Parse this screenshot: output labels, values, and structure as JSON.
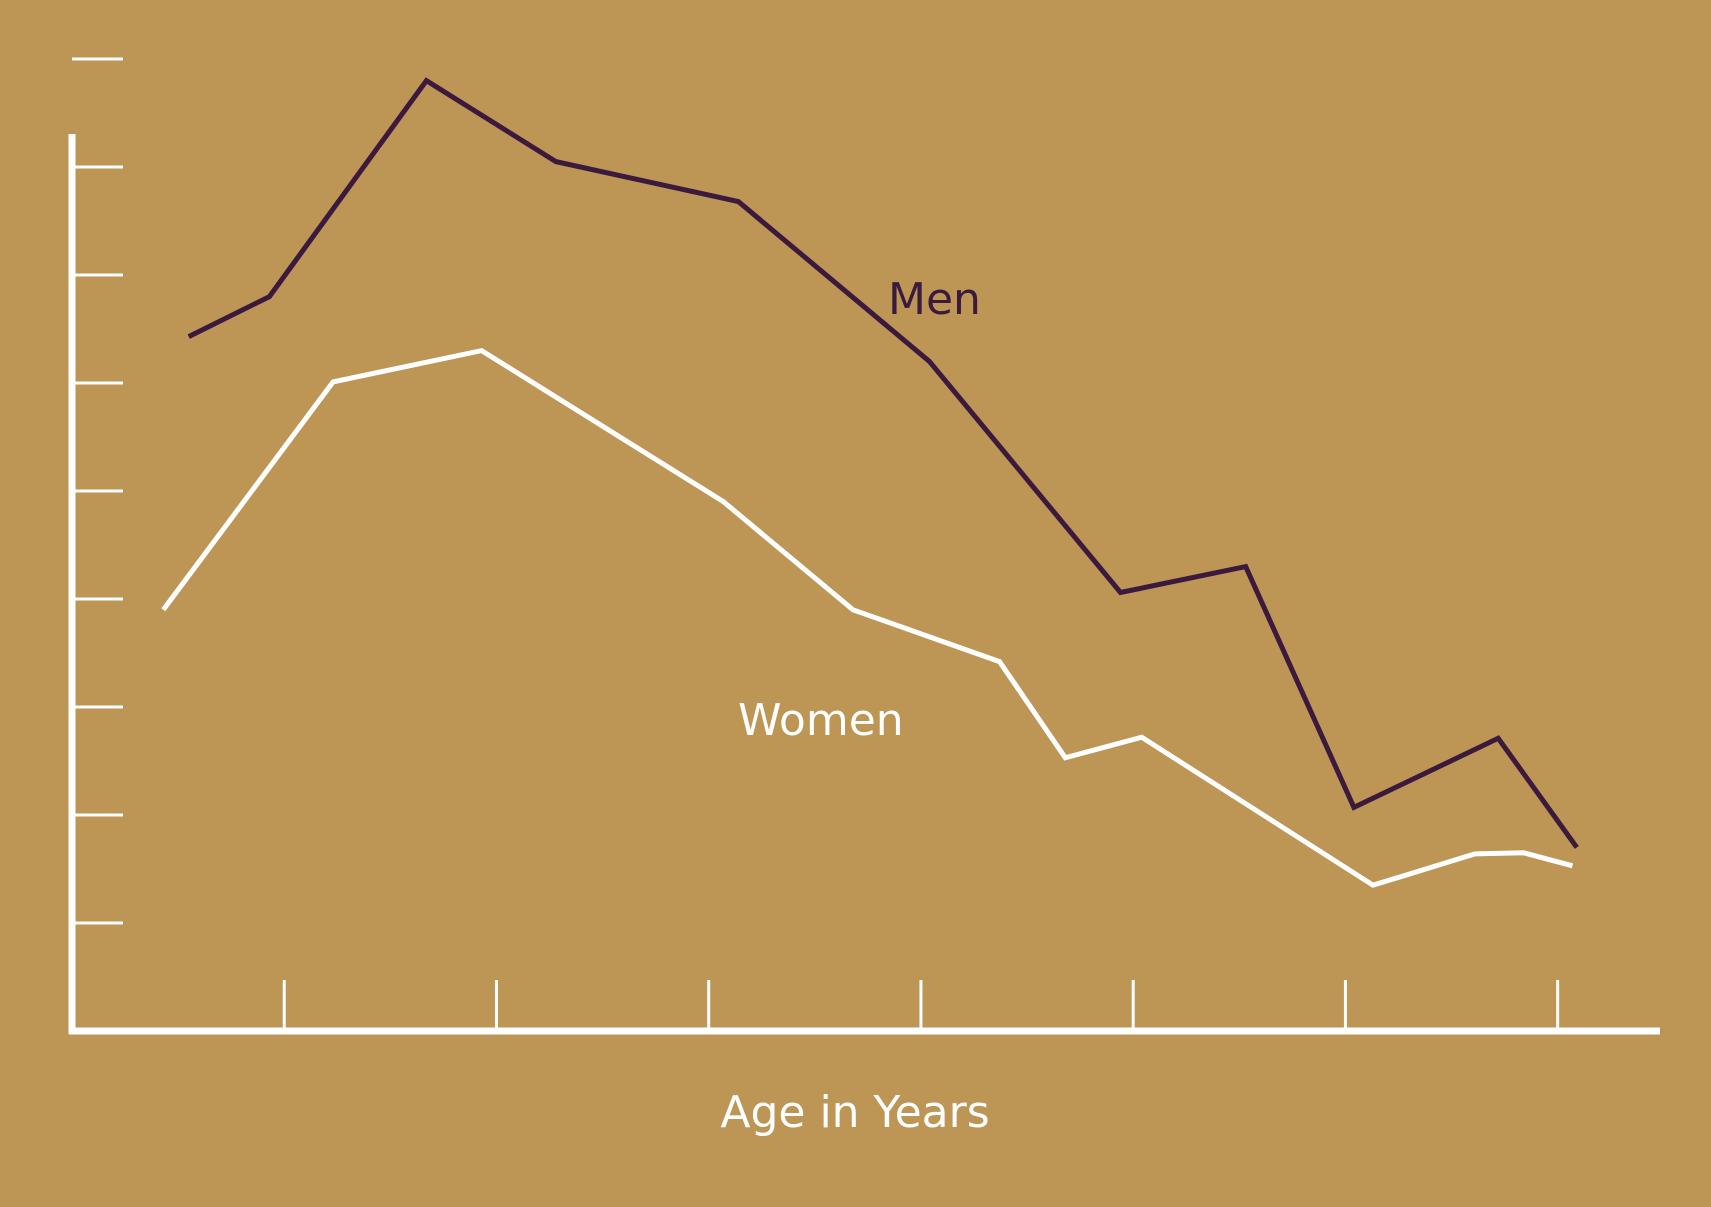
{
  "chart_data": {
    "type": "line",
    "title": "",
    "xlabel": "Age in Years",
    "ylabel": "",
    "x_ticks": 7,
    "y_ticks": 9,
    "xlim": [
      0,
      7.6
    ],
    "ylim": [
      0,
      9
    ],
    "grid": false,
    "legend": "inline labels",
    "colors": {
      "background": "#bd9555",
      "axes": "#ffffff",
      "men": "#3b1a3d",
      "women": "#ffffff"
    },
    "series": [
      {
        "name": "Men",
        "x": [
          0.55,
          0.93,
          1.67,
          2.28,
          3.14,
          4.04,
          4.94,
          5.53,
          6.04,
          6.72,
          7.09
        ],
        "y": [
          6.43,
          6.8,
          8.8,
          8.05,
          7.68,
          6.2,
          4.06,
          4.3,
          2.07,
          2.71,
          1.7
        ]
      },
      {
        "name": "Women",
        "x": [
          0.43,
          1.23,
          1.93,
          3.07,
          3.68,
          4.37,
          4.68,
          5.04,
          6.13,
          6.61,
          6.84,
          7.07
        ],
        "y": [
          3.9,
          6.01,
          6.3,
          4.9,
          3.9,
          3.42,
          2.53,
          2.72,
          1.35,
          1.64,
          1.65,
          1.53
        ]
      }
    ]
  }
}
